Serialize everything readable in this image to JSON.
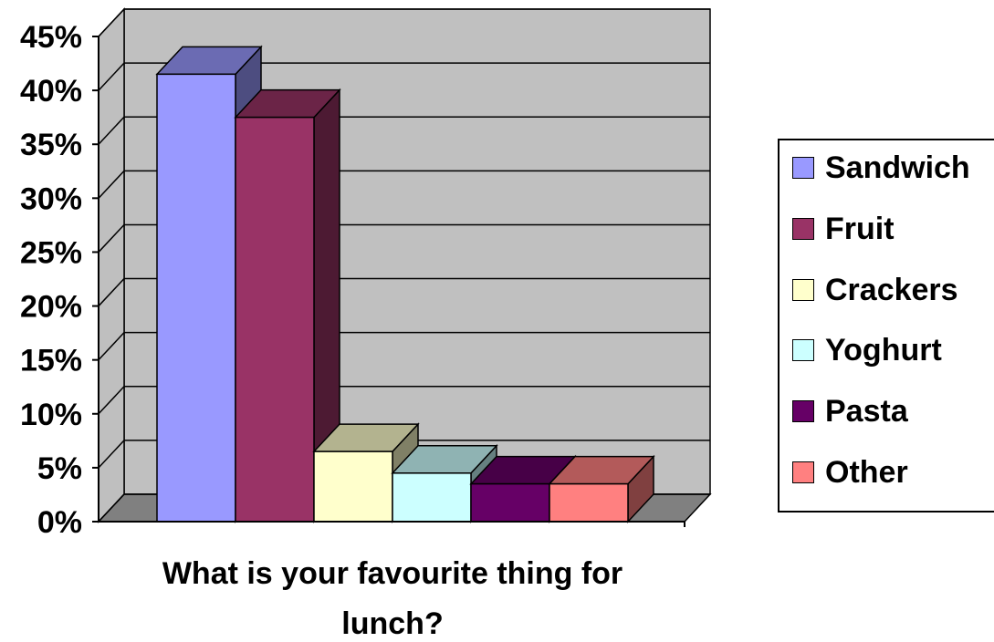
{
  "chart_data": {
    "type": "bar",
    "title": "",
    "xlabel": "What is your favourite thing for lunch?",
    "ylabel": "",
    "ylim": [
      0,
      45
    ],
    "yticks": [
      "0%",
      "5%",
      "10%",
      "15%",
      "20%",
      "25%",
      "30%",
      "35%",
      "40%",
      "45%"
    ],
    "categories": [
      "Sandwich",
      "Fruit",
      "Crackers",
      "Yoghurt",
      "Pasta",
      "Other"
    ],
    "values": [
      41.5,
      37.5,
      6.5,
      4.5,
      3.5,
      3.5
    ],
    "colors": [
      "#9999FF",
      "#993366",
      "#FFFFCC",
      "#CCFFFF",
      "#660066",
      "#FF8080"
    ],
    "grid": true,
    "three_d": true,
    "legend_position": "right"
  }
}
